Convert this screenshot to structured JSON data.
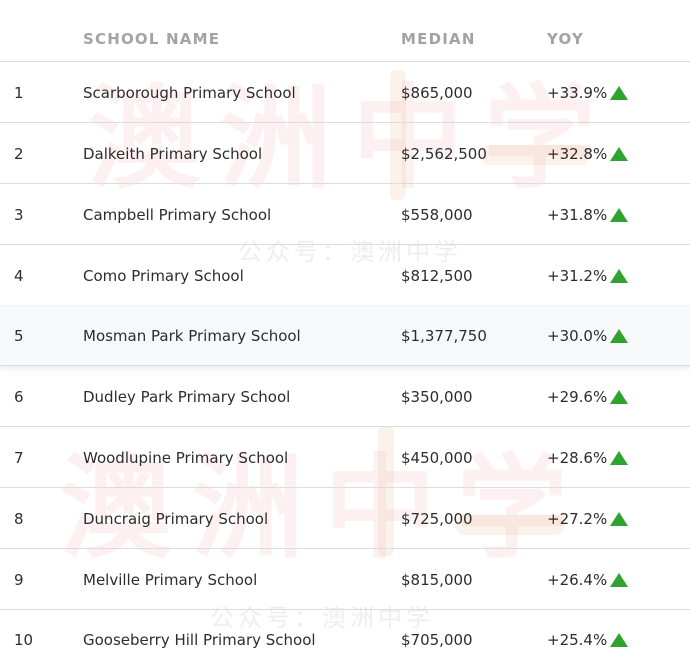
{
  "watermark": {
    "main_text": "澳洲中学",
    "sub_text": "公众号：澳洲中学"
  },
  "header": {
    "school_name": "SCHOOL NAME",
    "median": "MEDIAN",
    "yoy": "YOY"
  },
  "colors": {
    "up_arrow": "#2fa32f",
    "divider": "#dcdcdc",
    "header_text": "#a3a3a3"
  },
  "rows": [
    {
      "rank": "1",
      "name": "Scarborough Primary School",
      "median": "$865,000",
      "yoy": "+33.9%",
      "trend_icon": "triangle-up-icon"
    },
    {
      "rank": "2",
      "name": "Dalkeith Primary School",
      "median": "$2,562,500",
      "yoy": "+32.8%",
      "trend_icon": "triangle-up-icon"
    },
    {
      "rank": "3",
      "name": "Campbell Primary School",
      "median": "$558,000",
      "yoy": "+31.8%",
      "trend_icon": "triangle-up-icon"
    },
    {
      "rank": "4",
      "name": "Como Primary School",
      "median": "$812,500",
      "yoy": "+31.2%",
      "trend_icon": "triangle-up-icon"
    },
    {
      "rank": "5",
      "name": "Mosman Park Primary School",
      "median": "$1,377,750",
      "yoy": "+30.0%",
      "trend_icon": "triangle-up-icon"
    },
    {
      "rank": "6",
      "name": "Dudley Park Primary School",
      "median": "$350,000",
      "yoy": "+29.6%",
      "trend_icon": "triangle-up-icon"
    },
    {
      "rank": "7",
      "name": "Woodlupine Primary School",
      "median": "$450,000",
      "yoy": "+28.6%",
      "trend_icon": "triangle-up-icon"
    },
    {
      "rank": "8",
      "name": "Duncraig Primary School",
      "median": "$725,000",
      "yoy": "+27.2%",
      "trend_icon": "triangle-up-icon"
    },
    {
      "rank": "9",
      "name": "Melville Primary School",
      "median": "$815,000",
      "yoy": "+26.4%",
      "trend_icon": "triangle-up-icon"
    },
    {
      "rank": "10",
      "name": "Gooseberry Hill Primary School",
      "median": "$705,000",
      "yoy": "+25.4%",
      "trend_icon": "triangle-up-icon"
    }
  ]
}
